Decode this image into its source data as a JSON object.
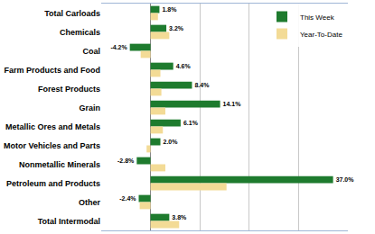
{
  "chart_data": {
    "type": "bar",
    "orientation": "horizontal",
    "categories": [
      "Total Carloads",
      "Chemicals",
      "Coal",
      "Farm Products and Food",
      "Forest Products",
      "Grain",
      "Metallic Ores and Metals",
      "Motor Vehicles and Parts",
      "Nonmetallic Minerals",
      "Petroleum and Products",
      "Other",
      "Total Intermodal"
    ],
    "series": [
      {
        "name": "This Week",
        "color": "#1e7b2e",
        "values": [
          1.8,
          3.2,
          -4.2,
          4.6,
          8.4,
          14.1,
          6.1,
          2.0,
          -2.8,
          37.0,
          -2.4,
          3.8
        ],
        "value_labels": [
          "1.8%",
          "3.2%",
          "-4.2%",
          "4.6%",
          "8.4%",
          "14.1%",
          "6.1%",
          "2.0%",
          "-2.8%",
          "37.0%",
          "-2.4%",
          "3.8%"
        ]
      },
      {
        "name": "Year-To-Date",
        "color": "#f3db96",
        "values": [
          1.5,
          3.8,
          -2.0,
          2.0,
          2.2,
          3.0,
          2.5,
          -0.8,
          3.0,
          15.4,
          -2.2,
          5.8
        ]
      }
    ],
    "xlim": [
      -10,
      40
    ],
    "xticks": [
      -10,
      0,
      10,
      20,
      30,
      40
    ],
    "grid": true,
    "legend": "top-right",
    "data_labels": true,
    "tick_labels": "y"
  }
}
